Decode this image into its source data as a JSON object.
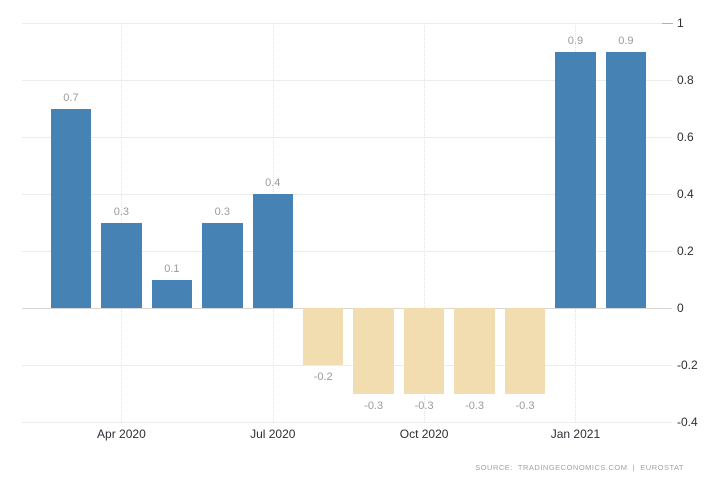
{
  "source_label": "SOURCE:  TRADINGECONOMICS.COM  |  EUROSTAT",
  "chart_data": {
    "type": "bar",
    "title": "",
    "xlabel": "",
    "ylabel": "",
    "categories": [
      "Mar 2020",
      "Apr 2020",
      "May 2020",
      "Jun 2020",
      "Jul 2020",
      "Aug 2020",
      "Sep 2020",
      "Oct 2020",
      "Nov 2020",
      "Dec 2020",
      "Jan 2021",
      "Feb 2021"
    ],
    "values": [
      0.7,
      0.3,
      0.1,
      0.3,
      0.4,
      -0.2,
      -0.3,
      -0.3,
      -0.3,
      -0.3,
      0.9,
      0.9
    ],
    "bar_labels": [
      "0.7",
      "0.3",
      "0.1",
      "0.3",
      "0.4",
      "-0.2",
      "-0.3",
      "-0.3",
      "-0.3",
      "-0.3",
      "0.9",
      "0.9"
    ],
    "x_ticks": [
      {
        "label": "Apr 2020",
        "index": 1
      },
      {
        "label": "Jul 2020",
        "index": 4
      },
      {
        "label": "Oct 2020",
        "index": 7
      },
      {
        "label": "Jan 2021",
        "index": 10
      }
    ],
    "y_ticks": [
      {
        "value": 1,
        "label": "1"
      },
      {
        "value": 0.8,
        "label": "0.8"
      },
      {
        "value": 0.6,
        "label": "0.6"
      },
      {
        "value": 0.4,
        "label": "0.4"
      },
      {
        "value": 0.2,
        "label": "0.2"
      },
      {
        "value": 0,
        "label": "0"
      },
      {
        "value": -0.2,
        "label": "-0.2"
      },
      {
        "value": -0.4,
        "label": "-0.4"
      }
    ],
    "ylim": [
      -0.4,
      1.0
    ],
    "grid": true,
    "legend_position": "none",
    "colors": {
      "positive_bar": "#4682b4",
      "negative_bar": "#f2ddb1",
      "value_label": "#9b9b9b",
      "axis_label": "#2e2e36",
      "source_text": "#a3a3a3"
    }
  }
}
